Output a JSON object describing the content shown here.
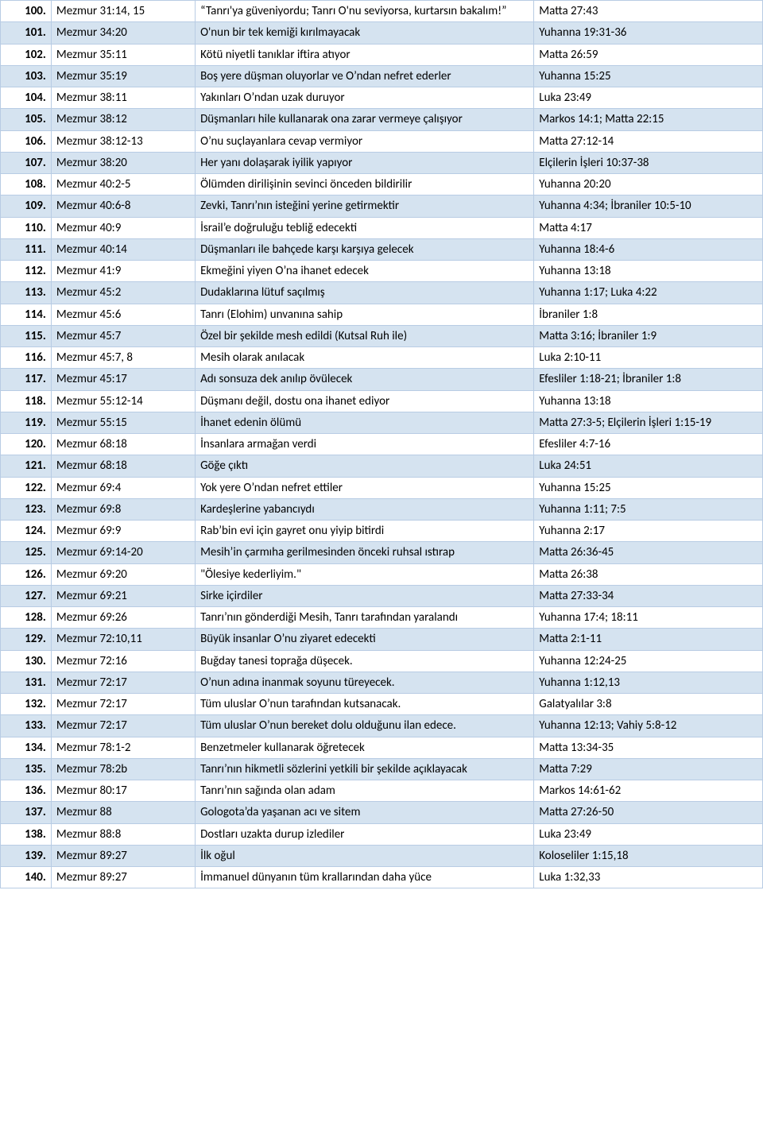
{
  "colors": {
    "row_alt": "#d5e3f0",
    "row_base": "#ffffff",
    "border": "#b8cce4",
    "text": "#000000"
  },
  "table": {
    "columns": [
      "num",
      "ref",
      "desc",
      "nt"
    ],
    "rows": [
      {
        "num": "100.",
        "ref": "Mezmur 31:14, 15",
        "desc": "“Tanrı'ya güveniyordu; Tanrı O'nu seviyorsa, kurtarsın bakalım!”",
        "nt": "Matta 27:43"
      },
      {
        "num": "101.",
        "ref": "Mezmur 34:20",
        "desc": "O'nun bir tek kemiği kırılmayacak",
        "nt": "Yuhanna 19:31-36"
      },
      {
        "num": "102.",
        "ref": "Mezmur 35:11",
        "desc": "Kötü niyetli tanıklar iftira atıyor",
        "nt": "Matta 26:59"
      },
      {
        "num": "103.",
        "ref": "Mezmur 35:19",
        "desc": "Boş yere düşman oluyorlar ve O’ndan nefret ederler",
        "nt": "Yuhanna 15:25"
      },
      {
        "num": "104.",
        "ref": "Mezmur 38:11",
        "desc": "Yakınları O’ndan uzak duruyor",
        "nt": "Luka 23:49"
      },
      {
        "num": "105.",
        "ref": "Mezmur 38:12",
        "desc": "Düşmanları hile kullanarak ona zarar vermeye çalışıyor",
        "nt": "Markos 14:1; Matta 22:15"
      },
      {
        "num": "106.",
        "ref": "Mezmur 38:12-13",
        "desc": "O’nu suçlayanlara cevap vermiyor",
        "nt": "Matta 27:12-14"
      },
      {
        "num": "107.",
        "ref": "Mezmur 38:20",
        "desc": "Her yanı dolaşarak iyilik yapıyor",
        "nt": "Elçilerin İşleri 10:37-38"
      },
      {
        "num": "108.",
        "ref": "Mezmur 40:2-5",
        "desc": "Ölümden dirilişinin sevinci önceden bildirilir",
        "nt": "Yuhanna 20:20"
      },
      {
        "num": "109.",
        "ref": "Mezmur 40:6-8",
        "desc": "Zevki, Tanrı’nın isteğini yerine getirmektir",
        "nt": "Yuhanna 4:34; İbraniler 10:5-10"
      },
      {
        "num": "110.",
        "ref": "Mezmur 40:9",
        "desc": "İsrail’e doğruluğu tebliğ edecekti",
        "nt": "Matta 4:17"
      },
      {
        "num": "111.",
        "ref": "Mezmur 40:14",
        "desc": "Düşmanları ile bahçede karşı karşıya gelecek",
        "nt": "Yuhanna 18:4-6"
      },
      {
        "num": "112.",
        "ref": "Mezmur 41:9",
        "desc": "Ekmeğini yiyen O’na ihanet edecek",
        "nt": "Yuhanna 13:18"
      },
      {
        "num": "113.",
        "ref": "Mezmur 45:2",
        "desc": "Dudaklarına lütuf saçılmış",
        "nt": "Yuhanna 1:17; Luka 4:22"
      },
      {
        "num": "114.",
        "ref": "Mezmur 45:6",
        "desc": "Tanrı (Elohim) unvanına sahip",
        "nt": "İbraniler 1:8"
      },
      {
        "num": "115.",
        "ref": "Mezmur 45:7",
        "desc": "Özel bir şekilde mesh edildi (Kutsal Ruh ile)",
        "nt": "Matta 3:16; İbraniler 1:9"
      },
      {
        "num": "116.",
        "ref": "Mezmur 45:7, 8",
        "desc": "Mesih olarak anılacak",
        "nt": "Luka 2:10-11"
      },
      {
        "num": "117.",
        "ref": "Mezmur 45:17",
        "desc": "Adı sonsuza dek anılıp övülecek",
        "nt": "Efesliler 1:18-21; İbraniler 1:8"
      },
      {
        "num": "118.",
        "ref": "Mezmur 55:12-14",
        "desc": "Düşmanı değil, dostu ona ihanet ediyor",
        "nt": "Yuhanna 13:18"
      },
      {
        "num": "119.",
        "ref": "Mezmur 55:15",
        "desc": "İhanet edenin ölümü",
        "nt": "Matta 27:3-5; Elçilerin İşleri 1:15-19"
      },
      {
        "num": "120.",
        "ref": "Mezmur 68:18",
        "desc": "İnsanlara armağan verdi",
        "nt": "Efesliler 4:7-16"
      },
      {
        "num": "121.",
        "ref": "Mezmur 68:18",
        "desc": "Göğe çıktı",
        "nt": "Luka 24:51"
      },
      {
        "num": "122.",
        "ref": "Mezmur 69:4",
        "desc": "Yok yere O’ndan nefret ettiler",
        "nt": "Yuhanna 15:25"
      },
      {
        "num": "123.",
        "ref": "Mezmur 69:8",
        "desc": "Kardeşlerine yabancıydı",
        "nt": "Yuhanna 1:11; 7:5"
      },
      {
        "num": "124.",
        "ref": "Mezmur 69:9",
        "desc": "Rab’bin evi için gayret onu yiyip bitirdi",
        "nt": "Yuhanna 2:17"
      },
      {
        "num": "125.",
        "ref": "Mezmur 69:14-20",
        "desc": "Mesih’in çarmıha gerilmesinden önceki ruhsal ıstırap",
        "nt": "Matta 26:36-45"
      },
      {
        "num": "126.",
        "ref": "Mezmur 69:20",
        "desc": "\"Ölesiye kederliyim.\"",
        "nt": "Matta 26:38"
      },
      {
        "num": "127.",
        "ref": "Mezmur 69:21",
        "desc": "Sirke içirdiler",
        "nt": "Matta 27:33-34"
      },
      {
        "num": "128.",
        "ref": "Mezmur 69:26",
        "desc": "Tanrı’nın gönderdiği Mesih, Tanrı tarafından yaralandı",
        "nt": "Yuhanna 17:4; 18:11"
      },
      {
        "num": "129.",
        "ref": "Mezmur 72:10,11",
        "desc": "Büyük insanlar O’nu ziyaret edecekti",
        "nt": "Matta 2:1-11"
      },
      {
        "num": "130.",
        "ref": "Mezmur 72:16",
        "desc": "Buğday tanesi toprağa düşecek.",
        "nt": "Yuhanna 12:24-25"
      },
      {
        "num": "131.",
        "ref": "Mezmur 72:17",
        "desc": "O’nun adına inanmak soyunu türeyecek.",
        "nt": "Yuhanna 1:12,13"
      },
      {
        "num": "132.",
        "ref": "Mezmur 72:17",
        "desc": "Tüm uluslar O’nun tarafından kutsanacak.",
        "nt": "Galatyalılar 3:8"
      },
      {
        "num": "133.",
        "ref": "Mezmur 72:17",
        "desc": "Tüm uluslar O’nun bereket dolu olduğunu ilan edece.",
        "nt": "Yuhanna 12:13; Vahiy 5:8-12"
      },
      {
        "num": "134.",
        "ref": "Mezmur 78:1-2",
        "desc": "Benzetmeler kullanarak öğretecek",
        "nt": "Matta 13:34-35"
      },
      {
        "num": "135.",
        "ref": "Mezmur 78:2b",
        "desc": "Tanrı’nın hikmetli sözlerini yetkili bir şekilde açıklayacak",
        "nt": "Matta 7:29"
      },
      {
        "num": "136.",
        "ref": "Mezmur 80:17",
        "desc": "Tanrı’nın sağında olan adam",
        "nt": "Markos 14:61-62"
      },
      {
        "num": "137.",
        "ref": "Mezmur 88",
        "desc": "Gologota’da yaşanan acı ve sitem",
        "nt": "Matta 27:26-50"
      },
      {
        "num": "138.",
        "ref": "Mezmur 88:8",
        "desc": "Dostları uzakta durup izlediler",
        "nt": "Luka 23:49"
      },
      {
        "num": "139.",
        "ref": "Mezmur 89:27",
        "desc": "İlk oğul",
        "nt": "Koloseliler 1:15,18"
      },
      {
        "num": "140.",
        "ref": "Mezmur 89:27",
        "desc": "İmmanuel dünyanın tüm krallarından daha yüce",
        "nt": "Luka 1:32,33"
      }
    ]
  }
}
